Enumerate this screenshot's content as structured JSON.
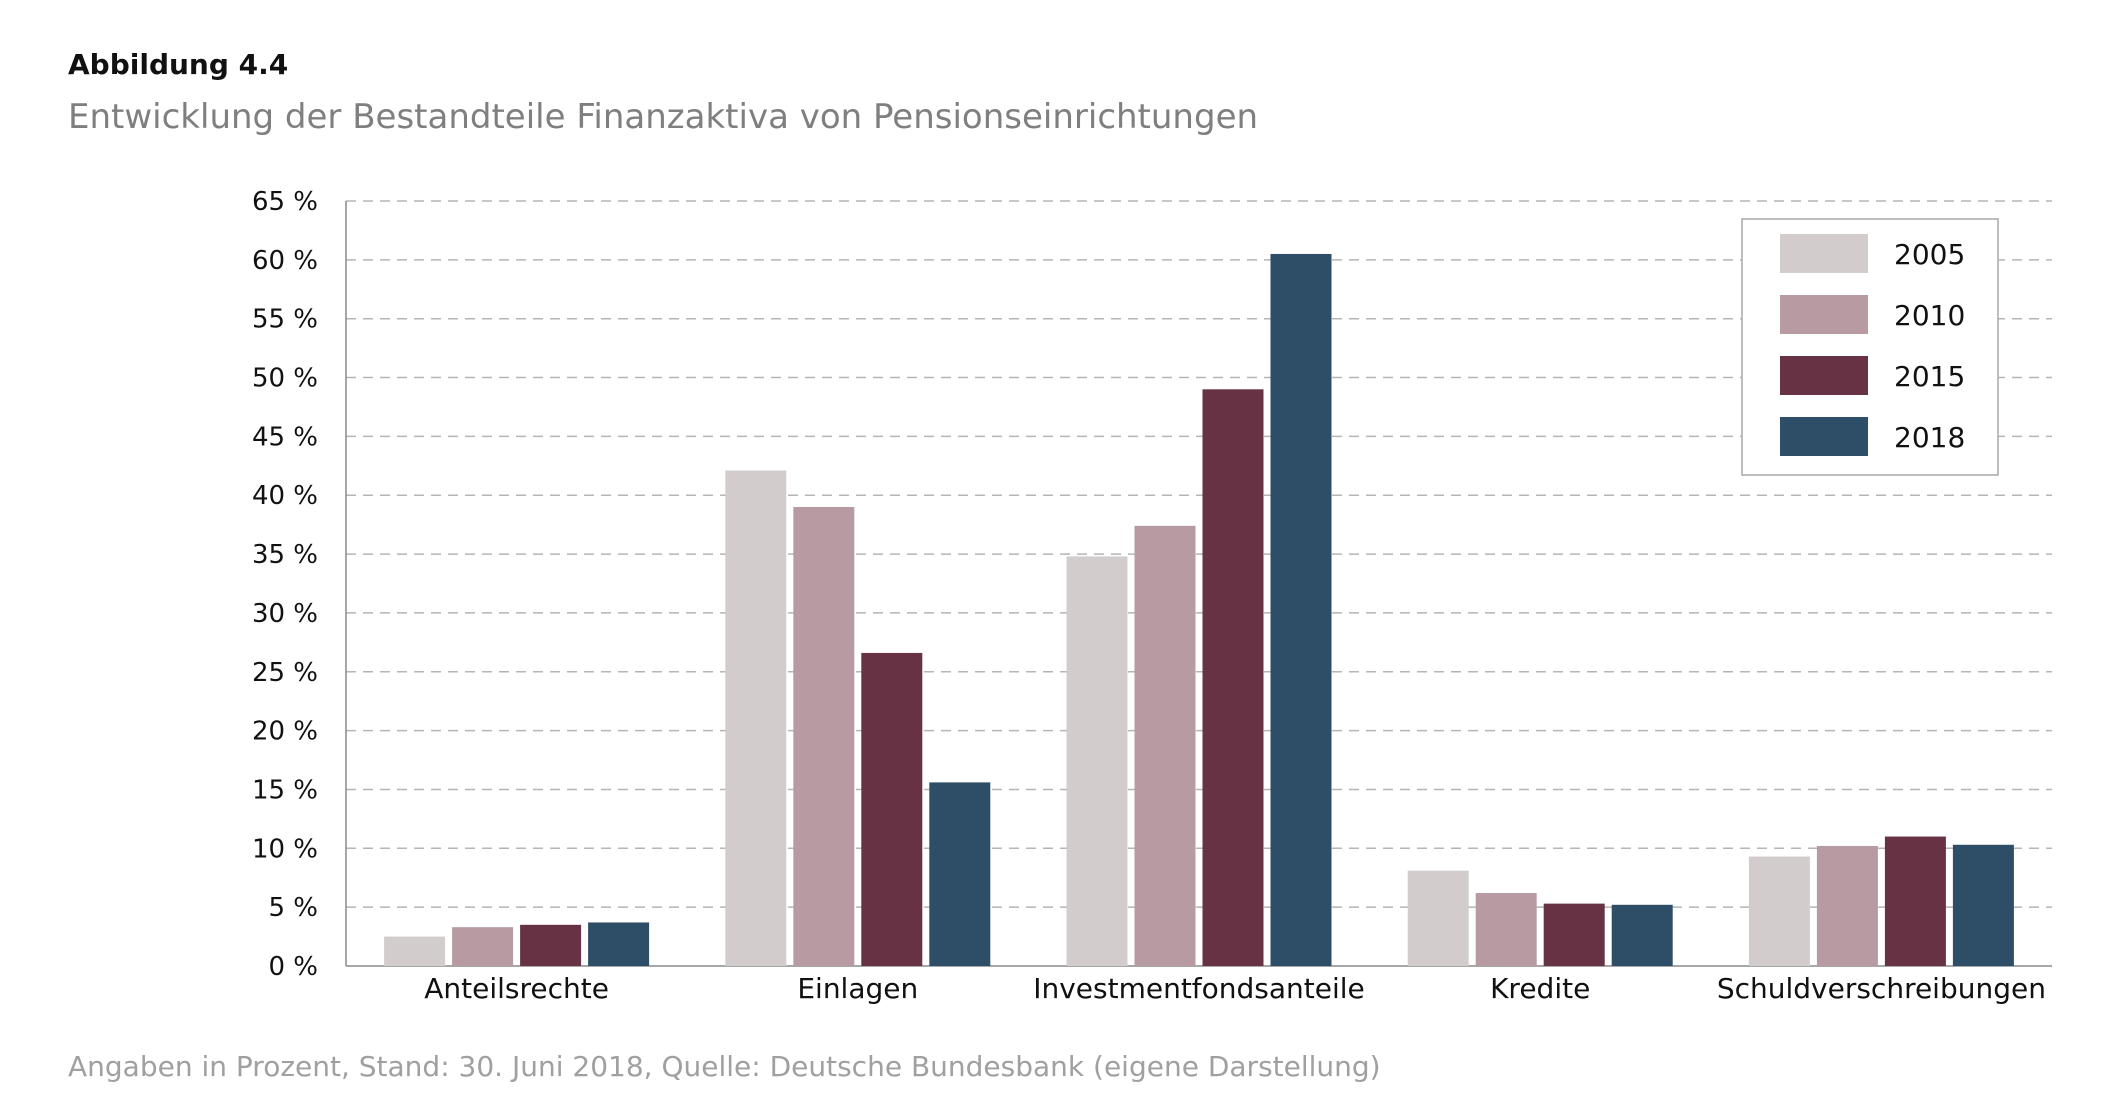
{
  "figure_label": "Abbildung 4.4",
  "title": "Entwicklung der Bestandteile Finanzaktiva von Pensionseinrichtungen",
  "footer": "Angaben in Prozent, Stand: 30. Juni 2018, Quelle: Deutsche Bundesbank (eigene Darstellung)",
  "chart_data": {
    "type": "bar",
    "categories": [
      "Anteilsrechte",
      "Einlagen",
      "Investmentfondsanteile",
      "Kredite",
      "Schuldverschreibungen"
    ],
    "series": [
      {
        "name": "2005",
        "color": "#d2cccd",
        "values": [
          2.5,
          42.1,
          34.8,
          8.1,
          9.3
        ]
      },
      {
        "name": "2010",
        "color": "#b89ba2",
        "values": [
          3.3,
          39.0,
          37.4,
          6.2,
          10.2
        ]
      },
      {
        "name": "2015",
        "color": "#673243",
        "values": [
          3.5,
          26.6,
          49.0,
          5.3,
          11.0
        ]
      },
      {
        "name": "2018",
        "color": "#2d4e66",
        "values": [
          3.7,
          15.6,
          60.5,
          5.2,
          10.3
        ]
      }
    ],
    "ylim": [
      0,
      65
    ],
    "yticks": [
      0,
      5,
      10,
      15,
      20,
      25,
      30,
      35,
      40,
      45,
      50,
      55,
      60,
      65
    ],
    "ytick_labels": [
      "0 %",
      "5 %",
      "10 %",
      "15 %",
      "20 %",
      "25 %",
      "30 %",
      "35 %",
      "40 %",
      "45 %",
      "50 %",
      "55 %",
      "60 %",
      "65 %"
    ],
    "xlabel": "",
    "ylabel": "",
    "grid": true,
    "legend_position": "top-right"
  }
}
